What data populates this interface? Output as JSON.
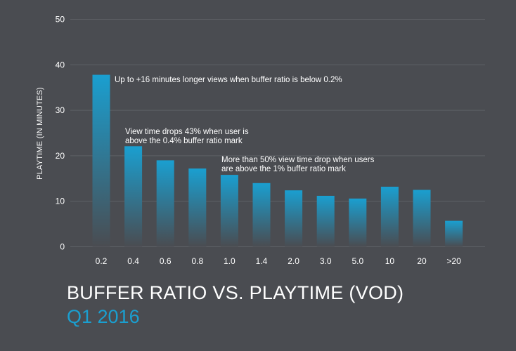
{
  "colors": {
    "background": "#4a4c51",
    "bar_top": "#1a9fd0",
    "bar_bottom": "#4a4c51",
    "grid": "#5d6065",
    "subtitle": "#1a9fd0"
  },
  "chart_data": {
    "type": "bar",
    "title": "BUFFER RATIO VS. PLAYTIME (VOD)",
    "subtitle": "Q1 2016",
    "xlabel": "",
    "ylabel": "PLAYTIME (IN MINUTES)",
    "ylim": [
      0,
      50
    ],
    "yticks": [
      0,
      10,
      20,
      30,
      40,
      50
    ],
    "grid": true,
    "categories": [
      "0.2",
      "0.4",
      "0.6",
      "0.8",
      "1.0",
      "1.4",
      "2.0",
      "3.0",
      "5.0",
      "10",
      "20",
      ">20"
    ],
    "values": [
      37.8,
      22.1,
      19.0,
      17.2,
      15.8,
      14.0,
      12.4,
      11.2,
      10.6,
      13.2,
      12.5,
      5.7
    ],
    "annotations": [
      {
        "lines": [
          "Up to +16 minutes longer views when buffer ratio is below 0.2%"
        ]
      },
      {
        "lines": [
          "View time drops 43% when user is",
          "above the 0.4% buffer ratio mark"
        ]
      },
      {
        "lines": [
          "More than 50% view time drop when users",
          "are above the 1% buffer ratio mark"
        ]
      }
    ]
  }
}
